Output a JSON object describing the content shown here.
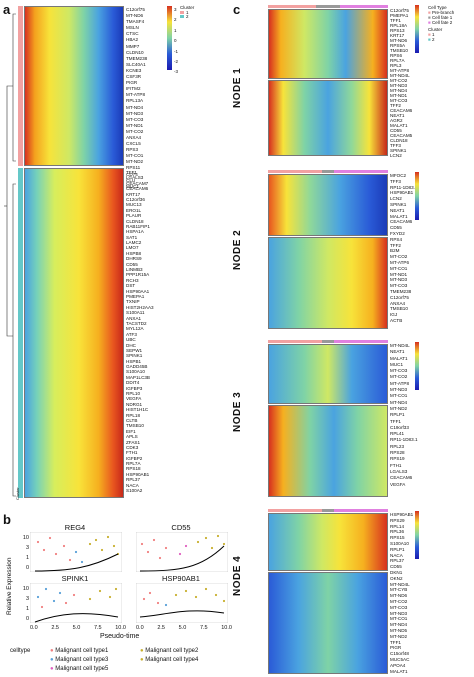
{
  "panels": {
    "a": "a",
    "b": "b",
    "c": "c"
  },
  "heatmap_a": {
    "legend": {
      "title": "Cluster",
      "items": [
        "1",
        "2"
      ],
      "ticks": [
        "3",
        "2",
        "1",
        "0",
        "-1",
        "-2",
        "-3"
      ]
    },
    "side_label": "Cluster",
    "genes_cluster1": [
      "C12orf75",
      "MT-ND6",
      "TMASF4",
      "MSLN",
      "CTSC",
      "HBA2",
      "MMP7",
      "CLDN10",
      "TMEM238",
      "SLC40A1",
      "KCNE3",
      "CSF3R",
      "PIGR",
      "IFITM2",
      "MT-ATP8",
      "RPL13A",
      "MT-ND4",
      "MT-ND3",
      "MT-CO3",
      "MT-ND1",
      "MT-CO2",
      "ANXA4",
      "CXCL5",
      "RPS3",
      "MT-CO1",
      "MT-ND2",
      "RPS11",
      "CD74",
      "CLU",
      "MUC1"
    ],
    "genes_cluster2": [
      "TFF1",
      "LGALS3",
      "CEACAM7",
      "CEACAM6",
      "KRT17",
      "C12orf36",
      "MUC13",
      "ERO1L",
      "PLAUR",
      "CLDN18",
      "RAB11FIP1",
      "HSPA1A",
      "SAT1",
      "LAMC2",
      "LMO7",
      "HSPB8",
      "DHRS9",
      "CD55",
      "LINMB3",
      "PPP1R15A",
      "RCH3",
      "DST",
      "HSP90AA1",
      "PMEPA1",
      "TXNIP",
      "HIST2H2AA3",
      "S100A11",
      "ANXA1",
      "TACSTD2",
      "MYL12A",
      "ATF3",
      "UBC",
      "DHC",
      "SEPW1",
      "SPINK1",
      "HSPB1",
      "GADD45B",
      "S100A10",
      "MAP1LC3B",
      "DDIT4",
      "IGFBP3",
      "RPL10",
      "VEGFA",
      "NDRG1",
      "HIST1H1C",
      "RPL18",
      "CLTB",
      "TMSB10",
      "EIF1",
      "APLS",
      "ZFAS1",
      "CDK3",
      "FTH1",
      "IGFBP2",
      "RPL7A",
      "RPS18",
      "HSP90AB1",
      "RPL37",
      "NACA",
      "S100A2"
    ]
  },
  "panel_b": {
    "ylabel": "Relative Expression",
    "xlabel": "Pseudo-time",
    "plots": [
      {
        "title": "REG4"
      },
      {
        "title": "CD55"
      },
      {
        "title": "SPINK1"
      },
      {
        "title": "HSP90AB1"
      }
    ],
    "yticks": [
      "10",
      "3",
      "1",
      "0"
    ],
    "xticks": [
      "0.0",
      "2.5",
      "5.0",
      "7.5",
      "10.0"
    ],
    "legend_title": "celltype",
    "legend_items": [
      {
        "label": "Malignant cell type1",
        "color": "#f08080"
      },
      {
        "label": "Malignant cell type2",
        "color": "#c0c0c0"
      },
      {
        "label": "Malignant cell type3",
        "color": "#5aa0d8"
      },
      {
        "label": "Malignant cell type4",
        "color": "#c8b030"
      },
      {
        "label": "Malignant cell type5",
        "color": "#e060c0"
      }
    ]
  },
  "panel_c": {
    "legend_title": "Cell Type",
    "legend_items": [
      "Pre-branch",
      "Cell fate 1",
      "Cell fate 2"
    ],
    "cluster_title": "Cluster",
    "cluster_items": [
      "1",
      "2"
    ],
    "ticks": [
      "3",
      "2",
      "1",
      "0",
      "-1",
      "-2",
      "-3"
    ],
    "nodes": [
      {
        "label": "NODE 1",
        "genes": [
          "C12orf75",
          "PMEPA1",
          "TFF1",
          "RPL18A",
          "RPS13",
          "KRT17",
          "MT-ND6",
          "RPS5A",
          "TMSB10",
          "RPS6",
          "RPL7A",
          "RPL3",
          "MT-ATP8",
          "MT-ND4L",
          "MT-CO2",
          "MT-ND3",
          "MT-ND4",
          "MT-ND1",
          "MT-CO3",
          "TFF2",
          "CEACAM6",
          "NEAT1",
          "AGR2",
          "MALAT1",
          "CD55",
          "CEACAM5",
          "CLDN18",
          "TFF3",
          "SPINK1",
          "LCN2"
        ]
      },
      {
        "label": "NODE 2",
        "genes": [
          "MFOC2",
          "TFF3",
          "RP11-1D83.1",
          "HSP90AB1",
          "LCN2",
          "SPINK1",
          "NEAT1",
          "MALAT1",
          "CEACAM6",
          "CD55",
          "FXYD2",
          "RPS4",
          "TFF2",
          "B2M",
          "MT-CO2",
          "MT-ATP6",
          "MT-CO1",
          "MT-ND1",
          "MT-ND3",
          "MT-CO3",
          "TMEM238",
          "C12orf75",
          "ANXA4",
          "TMSB10",
          "IGJ",
          "ACTB"
        ]
      },
      {
        "label": "NODE 3",
        "genes": [
          "MT-ND4L",
          "NEAT1",
          "MALAT1",
          "MUC1",
          "MT-CO3",
          "MT-CO2",
          "MT-ATP8",
          "MT-ND3",
          "MT-CO1",
          "MT-ND4",
          "MT-ND2",
          "RPLP1",
          "TFF1",
          "C19orf33",
          "RPL41",
          "RP11-1D83.1",
          "RPL23",
          "RPS28",
          "RPS19",
          "FTH1",
          "LGALS3",
          "CEACAM6",
          "VEGFA"
        ]
      },
      {
        "label": "NODE 4",
        "genes": [
          "HSP90AB1",
          "RPS29",
          "RPL14",
          "RPL36",
          "RPS15",
          "S100A10",
          "RPLP1",
          "NACA",
          "RPL37",
          "CD55",
          "DKN1",
          "OKN2",
          "MT-ND4L",
          "MT-CYB",
          "MT-ND6",
          "MT-CO2",
          "MT-CO3",
          "MT-ND3",
          "MT-CO1",
          "MT-ND4",
          "MT-ND5",
          "MT-ND2",
          "TFF1",
          "PIGR",
          "C15orf48",
          "MUC5AC",
          "APOA4",
          "MALAT1"
        ]
      }
    ]
  }
}
